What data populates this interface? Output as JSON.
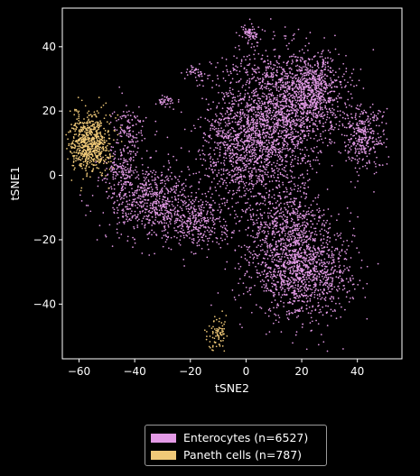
{
  "chart_data": {
    "type": "scatter",
    "title": "",
    "xlabel": "tSNE2",
    "ylabel": "tSNE1",
    "xlim": [
      -66,
      56
    ],
    "ylim": [
      -57,
      52
    ],
    "xticks": [
      -60,
      -40,
      -20,
      0,
      20,
      40
    ],
    "yticks": [
      -40,
      -20,
      0,
      20,
      40
    ],
    "xtick_labels": [
      "−60",
      "−40",
      "−20",
      "0",
      "20",
      "40"
    ],
    "ytick_labels": [
      "−40",
      "−20",
      "0",
      "20",
      "40"
    ],
    "background": "#000000",
    "legend_position": "bottom, below axes",
    "series": [
      {
        "name": "Enterocytes (n=6527)",
        "count": 6527,
        "color": "#e39ae6",
        "clusters": [
          {
            "cx": 8,
            "cy": 17,
            "sx": 10,
            "sy": 11,
            "w": 0.28
          },
          {
            "cx": 24,
            "cy": 26,
            "sx": 6,
            "sy": 6,
            "w": 0.12
          },
          {
            "cx": 20,
            "cy": -30,
            "sx": 9,
            "sy": 7,
            "w": 0.19
          },
          {
            "cx": 14,
            "cy": -15,
            "sx": 8,
            "sy": 6,
            "w": 0.08
          },
          {
            "cx": -34,
            "cy": -8,
            "sx": 8,
            "sy": 6,
            "w": 0.1
          },
          {
            "cx": -18,
            "cy": -14,
            "sx": 6,
            "sy": 4,
            "w": 0.05
          },
          {
            "cx": 42,
            "cy": 12,
            "sx": 4,
            "sy": 5,
            "w": 0.05
          },
          {
            "cx": -3,
            "cy": 5,
            "sx": 6,
            "sy": 7,
            "w": 0.06
          },
          {
            "cx": 2,
            "cy": 44,
            "sx": 1.5,
            "sy": 1.2,
            "w": 0.01
          },
          {
            "cx": -29,
            "cy": 23,
            "sx": 1.5,
            "sy": 1,
            "w": 0.006
          },
          {
            "cx": -18,
            "cy": 32,
            "sx": 2,
            "sy": 1,
            "w": 0.006
          },
          {
            "cx": -42,
            "cy": 14,
            "sx": 3,
            "sy": 4,
            "w": 0.02
          },
          {
            "cx": -45,
            "cy": 2,
            "sx": 3,
            "sy": 3,
            "w": 0.02
          }
        ]
      },
      {
        "name": "Paneth cells (n=787)",
        "count": 787,
        "color": "#f0c978",
        "clusters": [
          {
            "cx": -56,
            "cy": 10,
            "sx": 3.5,
            "sy": 4.5,
            "w": 0.9
          },
          {
            "cx": -10,
            "cy": -49,
            "sx": 1.8,
            "sy": 2.5,
            "w": 0.1
          }
        ]
      }
    ]
  }
}
